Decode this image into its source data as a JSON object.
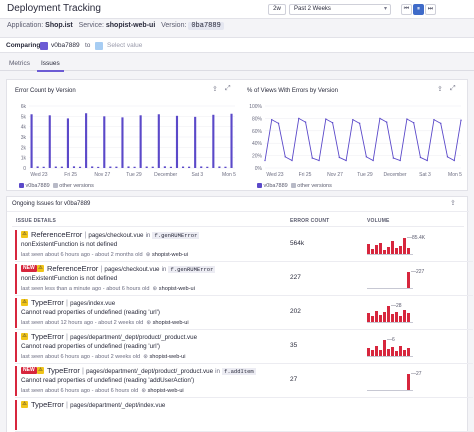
{
  "header": {
    "title": "Deployment Tracking",
    "range_short": "2w",
    "range_label": "Past 2 Weeks",
    "controls": [
      "⏮",
      "⏸",
      "⏭"
    ]
  },
  "meta": {
    "application_label": "Application:",
    "application": "Shop.ist",
    "service_label": "Service:",
    "service": "shopist-web-ui",
    "version_label": "Version:",
    "version": "0ba7889"
  },
  "compare": {
    "label": "Comparing",
    "from_version": "v0ba7889",
    "to_label": "to",
    "placeholder": "Select value",
    "from_color": "#6c5bd4",
    "to_color": "#a7cdf3"
  },
  "tabs": [
    {
      "label": "Metrics",
      "active": false
    },
    {
      "label": "Issues",
      "active": true
    }
  ],
  "charts": {
    "error_count_title": "Error Count by Version",
    "views_title": "% of Views With Errors by Version",
    "legend_version": "v0ba7889",
    "legend_other": "other versions",
    "series_color": "#5b49c9"
  },
  "chart_data": [
    {
      "type": "bar",
      "title": "Error Count by Version",
      "y_ticks": [
        "6k",
        "5k",
        "4k",
        "3k",
        "2k",
        "1k",
        "0"
      ],
      "x_ticks": [
        "Wed 23",
        "Fri 25",
        "Nov 27",
        "Tue 29",
        "December",
        "Sat 3",
        "Mon 5"
      ],
      "ylim": [
        0,
        6000
      ],
      "series": [
        {
          "name": "v0ba7889",
          "values": [
            5200,
            150,
            120,
            5100,
            140,
            130,
            4800,
            160,
            120,
            5300,
            150,
            110,
            5000,
            140,
            130,
            4900,
            150,
            120,
            5100,
            140,
            130,
            5200,
            160,
            120,
            5050,
            140,
            130,
            4950,
            150,
            120,
            5150,
            145,
            125,
            5250
          ]
        }
      ]
    },
    {
      "type": "line",
      "title": "% of Views With Errors by Version",
      "y_ticks": [
        "100%",
        "80%",
        "60%",
        "40%",
        "20%",
        "0%"
      ],
      "x_ticks": [
        "Wed 23",
        "Fri 25",
        "Nov 27",
        "Tue 29",
        "December",
        "Sat 3",
        "Mon 5"
      ],
      "ylim": [
        0,
        100
      ],
      "series": [
        {
          "name": "v0ba7889",
          "values": [
            12,
            78,
            72,
            18,
            12,
            80,
            74,
            16,
            12,
            79,
            73,
            17,
            12,
            78,
            72,
            18,
            12,
            80,
            74,
            16,
            12,
            79,
            73,
            17,
            12,
            78,
            72,
            18,
            12,
            77
          ]
        }
      ]
    }
  ],
  "issues": {
    "title": "Ongoing Issues for v0ba7889",
    "col_details": "ISSUE DETAILS",
    "col_count": "ERROR COUNT",
    "col_volume": "VOLUME",
    "rows": [
      {
        "new": false,
        "type": "ReferenceError",
        "file": "pages/checkout.vue",
        "in_label": "in",
        "fn": "f.genRUMError",
        "message": "nonExistentFunction is not defined",
        "seen": "last seen about 6 hours ago - about 2 months old",
        "service": "shopist-web-ui",
        "count": "564k",
        "peak": "85.4K",
        "volume": [
          60,
          30,
          55,
          70,
          25,
          45,
          80,
          35,
          50,
          100,
          40
        ]
      },
      {
        "new": true,
        "new_label": "NEW",
        "type": "ReferenceError",
        "file": "pages/checkout.vue",
        "in_label": "in",
        "fn": "f.genRUMError",
        "message": "nonExistentFunction is not defined",
        "seen": "last seen less than a minute ago - about 6 hours old",
        "service": "shopist-web-ui",
        "count": "227",
        "peak": "227",
        "volume": [
          0,
          0,
          0,
          0,
          0,
          0,
          0,
          0,
          0,
          0,
          100
        ]
      },
      {
        "new": false,
        "type": "TypeError",
        "file": "pages/index.vue",
        "in_label": "",
        "fn": "",
        "message": "Cannot read properties of undefined (reading 'url')",
        "seen": "last seen about 12 hours ago - about 2 weeks old",
        "service": "shopist-web-ui",
        "count": "202",
        "peak": "28",
        "volume": [
          55,
          40,
          70,
          45,
          60,
          100,
          50,
          65,
          40,
          75,
          55
        ]
      },
      {
        "new": false,
        "type": "TypeError",
        "file": "pages/department/_dept/product/_product.vue",
        "in_label": "",
        "fn": "",
        "message": "Cannot read properties of undefined (reading 'url')",
        "seen": "last seen about 6 hours ago - about 2 weeks old",
        "service": "shopist-web-ui",
        "count": "35",
        "peak": "6",
        "volume": [
          50,
          35,
          60,
          40,
          100,
          45,
          55,
          30,
          65,
          40,
          50
        ]
      },
      {
        "new": true,
        "new_label": "NEW",
        "type": "TypeError",
        "file": "pages/department/_dept/product/_product.vue",
        "in_label": "in",
        "fn": "f.addItem",
        "message": "Cannot read properties of undefined (reading 'addUserAction')",
        "seen": "last seen about 6 hours ago - about 6 hours old",
        "service": "shopist-web-ui",
        "count": "27",
        "peak": "27",
        "volume": [
          0,
          0,
          0,
          0,
          0,
          0,
          0,
          0,
          0,
          0,
          100
        ]
      },
      {
        "new": false,
        "type": "TypeError",
        "file": "pages/department/_dept/index.vue",
        "in_label": "",
        "fn": "",
        "message": "",
        "seen": "",
        "service": "",
        "count": "",
        "peak": "",
        "volume": []
      }
    ]
  }
}
